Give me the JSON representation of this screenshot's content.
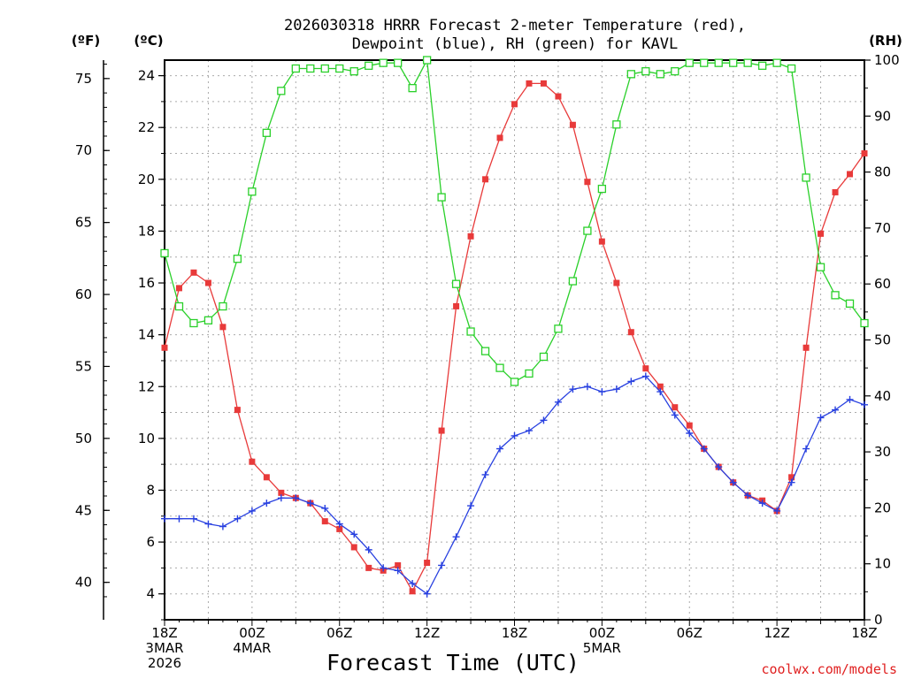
{
  "chart_data": {
    "type": "line",
    "title": "2026030318 HRRR Forecast 2-meter Temperature (red),",
    "subtitle": "Dewpoint (blue), RH (green) for KAVL",
    "xlabel": "Forecast Time (UTC)",
    "ylabel_f": "(ºF)",
    "ylabel_c": "(ºC)",
    "ylabel_rh": "(RH)",
    "credit": "coolwx.com/models",
    "x_start_hour": 0,
    "x_end_hour": 48,
    "ylim_c": [
      3,
      24.6
    ],
    "ylim_rh": [
      0,
      100
    ],
    "yticks_c": [
      4,
      6,
      8,
      10,
      12,
      14,
      16,
      18,
      20,
      22,
      24
    ],
    "yticks_rh": [
      0,
      10,
      20,
      30,
      40,
      50,
      60,
      70,
      80,
      90,
      100
    ],
    "yticks_f": [
      40,
      45,
      50,
      55,
      60,
      65,
      70,
      75
    ],
    "xticks": [
      {
        "hour": 0,
        "lines": [
          "18Z",
          "3MAR",
          "2026"
        ]
      },
      {
        "hour": 6,
        "lines": [
          "00Z",
          "4MAR"
        ]
      },
      {
        "hour": 12,
        "lines": [
          "06Z"
        ]
      },
      {
        "hour": 18,
        "lines": [
          "12Z"
        ]
      },
      {
        "hour": 24,
        "lines": [
          "18Z"
        ]
      },
      {
        "hour": 30,
        "lines": [
          "00Z",
          "5MAR"
        ]
      },
      {
        "hour": 36,
        "lines": [
          "06Z"
        ]
      },
      {
        "hour": 42,
        "lines": [
          "12Z"
        ]
      },
      {
        "hour": 48,
        "lines": [
          "18Z"
        ]
      }
    ],
    "series": [
      {
        "name": "Temperature (red)",
        "axis": "C",
        "color": "#e83a3a",
        "marker": "filled-square",
        "values": [
          13.5,
          15.8,
          16.4,
          16.0,
          14.3,
          11.1,
          9.1,
          8.5,
          7.9,
          7.7,
          7.5,
          6.8,
          6.5,
          5.8,
          5.0,
          4.9,
          5.1,
          4.1,
          5.2,
          10.3,
          15.1,
          17.8,
          20.0,
          21.6,
          22.9,
          23.7,
          23.7,
          23.2,
          22.1,
          19.9,
          17.6,
          16.0,
          14.1,
          12.7,
          12.0,
          11.2,
          10.5,
          9.6,
          8.9,
          8.3,
          7.8,
          7.6,
          7.2,
          8.5,
          13.5,
          17.9,
          19.5,
          20.2,
          21.0
        ]
      },
      {
        "name": "Dewpoint (blue)",
        "axis": "C",
        "color": "#2840e0",
        "marker": "plus",
        "values": [
          6.9,
          6.9,
          6.9,
          6.7,
          6.6,
          6.9,
          7.2,
          7.5,
          7.7,
          7.7,
          7.5,
          7.3,
          6.7,
          6.3,
          5.7,
          5.0,
          4.9,
          4.4,
          4.0,
          5.1,
          6.2,
          7.4,
          8.6,
          9.6,
          10.1,
          10.3,
          10.7,
          11.4,
          11.9,
          12.0,
          11.8,
          11.9,
          12.2,
          12.4,
          11.8,
          10.9,
          10.2,
          9.6,
          8.9,
          8.3,
          7.8,
          7.5,
          7.2,
          8.3,
          9.6,
          10.8,
          11.1,
          11.5,
          11.3
        ]
      },
      {
        "name": "RH (green)",
        "axis": "RH",
        "color": "#2ad02a",
        "marker": "open-square",
        "values": [
          65.5,
          56.0,
          53.0,
          53.5,
          56.0,
          64.5,
          76.5,
          87.0,
          94.5,
          98.5,
          98.5,
          98.5,
          98.5,
          98.0,
          99.0,
          99.5,
          99.5,
          95.0,
          100.0,
          75.5,
          60.0,
          51.5,
          48.0,
          45.0,
          42.5,
          44.0,
          47.0,
          52.0,
          60.5,
          69.5,
          77.0,
          88.5,
          97.5,
          98.0,
          97.5,
          98.0,
          99.5,
          99.5,
          99.5,
          99.5,
          99.5,
          99.0,
          99.5,
          98.5,
          79.0,
          63.0,
          58.0,
          56.5,
          53.0
        ]
      }
    ]
  }
}
